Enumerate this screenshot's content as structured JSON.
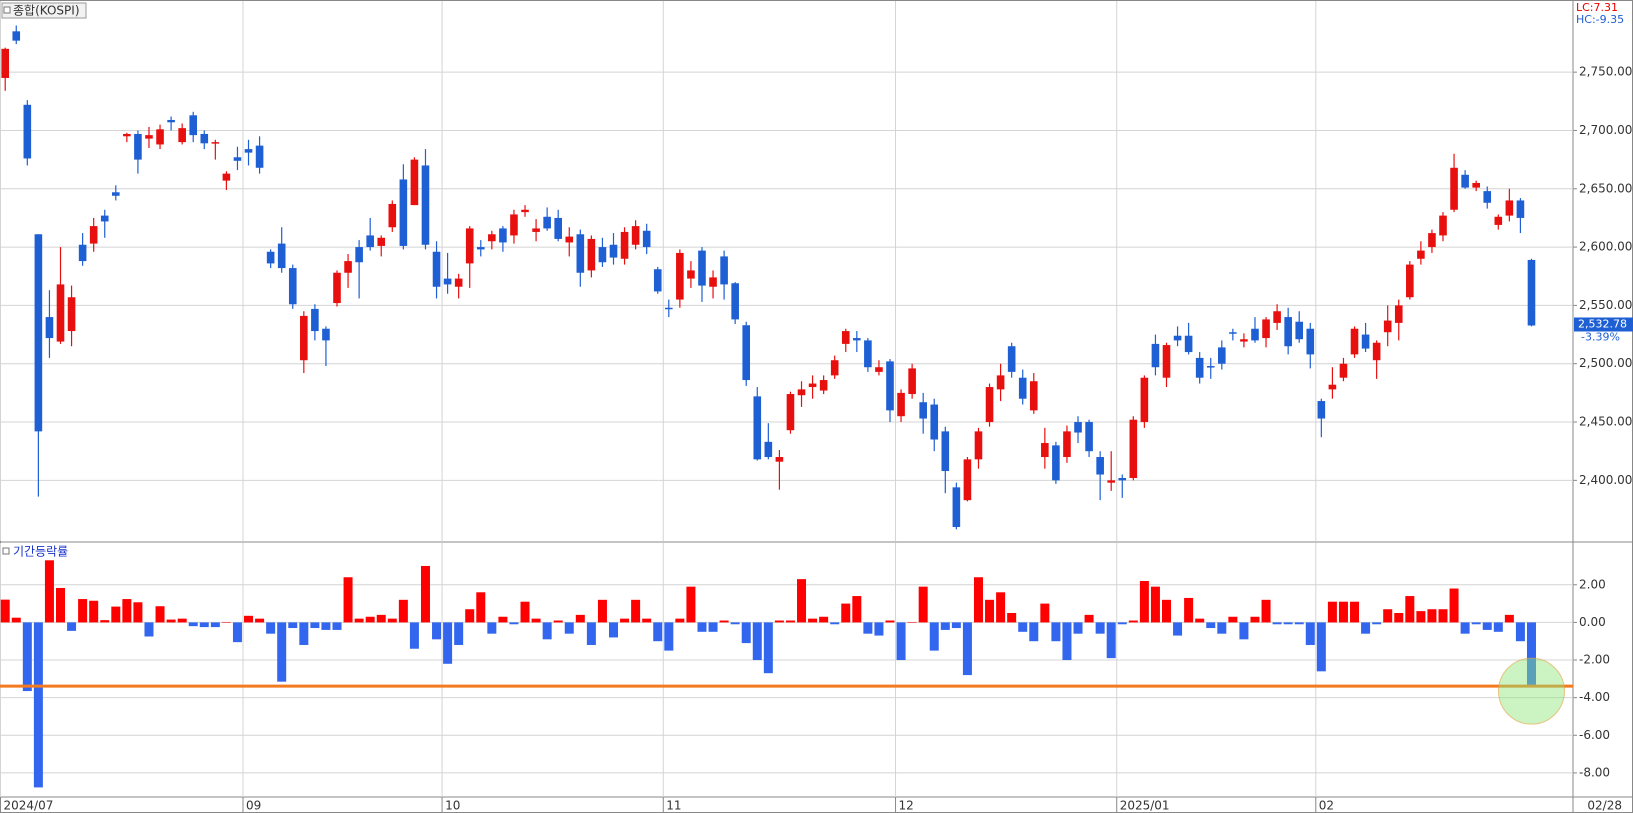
{
  "chart_data": [
    {
      "type": "candlestick",
      "title": "종합(KOSPI)",
      "categories": [
        "2024/07",
        null,
        null,
        null,
        null,
        null,
        null,
        null,
        null,
        null,
        null,
        null,
        null,
        null,
        null,
        null,
        null,
        null,
        null,
        null,
        null,
        null,
        "09",
        null,
        null,
        null,
        null,
        null,
        null,
        null,
        null,
        null,
        null,
        null,
        null,
        null,
        null,
        null,
        null,
        null,
        "10",
        null,
        null,
        null,
        null,
        null,
        null,
        null,
        null,
        null,
        null,
        null,
        null,
        null,
        null,
        null,
        null,
        null,
        null,
        null,
        "11",
        null,
        null,
        null,
        null,
        null,
        null,
        null,
        null,
        null,
        null,
        null,
        null,
        null,
        null,
        null,
        null,
        null,
        null,
        null,
        null,
        "12",
        null,
        null,
        null,
        null,
        null,
        null,
        null,
        null,
        null,
        null,
        null,
        null,
        null,
        null,
        null,
        null,
        null,
        null,
        null,
        "2025/01",
        null,
        null,
        null,
        null,
        null,
        null,
        null,
        null,
        null,
        null,
        null,
        null,
        null,
        null,
        null,
        null,
        null,
        "02",
        null,
        null,
        null,
        null,
        null,
        null,
        null,
        null,
        null,
        null,
        null,
        null,
        null,
        null,
        null,
        null,
        null,
        null,
        null
      ],
      "x_end_label": "02/28",
      "ohlc": [
        [
          2745,
          2771,
          2734,
          2770
        ],
        [
          2785,
          2790,
          2774,
          2777
        ],
        [
          2722,
          2726,
          2670,
          2676
        ],
        [
          2611,
          2611,
          2386,
          2442
        ],
        [
          2540,
          2563,
          2505,
          2522
        ],
        [
          2519,
          2600,
          2517,
          2568
        ],
        [
          2528,
          2567,
          2515,
          2557
        ],
        [
          2602,
          2612,
          2584,
          2588
        ],
        [
          2603,
          2625,
          2596,
          2618
        ],
        [
          2627,
          2632,
          2608,
          2622
        ],
        [
          2647,
          2653,
          2640,
          2644
        ],
        [
          2695,
          2698,
          2690,
          2697
        ],
        [
          2697,
          2700,
          2663,
          2675
        ],
        [
          2693,
          2703,
          2685,
          2696
        ],
        [
          2688,
          2705,
          2684,
          2701
        ],
        [
          2709,
          2712,
          2700,
          2707
        ],
        [
          2690,
          2706,
          2688,
          2702
        ],
        [
          2713,
          2716,
          2690,
          2696
        ],
        [
          2697,
          2700,
          2684,
          2689
        ],
        [
          2689,
          2692,
          2675,
          2690
        ],
        [
          2657,
          2665,
          2649,
          2663
        ],
        [
          2677,
          2686,
          2666,
          2674
        ],
        [
          2684,
          2692,
          2670,
          2681
        ],
        [
          2687,
          2695,
          2663,
          2668
        ],
        [
          2596,
          2598,
          2582,
          2586
        ],
        [
          2603,
          2617,
          2578,
          2582
        ],
        [
          2582,
          2585,
          2547,
          2551
        ],
        [
          2503,
          2545,
          2492,
          2541
        ],
        [
          2547,
          2551,
          2520,
          2528
        ],
        [
          2530,
          2532,
          2498,
          2520
        ],
        [
          2552,
          2580,
          2549,
          2578
        ],
        [
          2578,
          2594,
          2565,
          2588
        ],
        [
          2600,
          2606,
          2556,
          2587
        ],
        [
          2610,
          2625,
          2597,
          2600
        ],
        [
          2601,
          2610,
          2592,
          2608
        ],
        [
          2617,
          2640,
          2613,
          2637
        ],
        [
          2658,
          2671,
          2598,
          2601
        ],
        [
          2636,
          2677,
          2636,
          2675
        ],
        [
          2670,
          2684,
          2598,
          2602
        ],
        [
          2596,
          2605,
          2556,
          2566
        ],
        [
          2573,
          2595,
          2560,
          2568
        ],
        [
          2566,
          2577,
          2556,
          2573
        ],
        [
          2586,
          2618,
          2565,
          2616
        ],
        [
          2600,
          2606,
          2592,
          2598
        ],
        [
          2605,
          2614,
          2598,
          2611
        ],
        [
          2616,
          2618,
          2596,
          2604
        ],
        [
          2610,
          2632,
          2603,
          2628
        ],
        [
          2630,
          2636,
          2626,
          2632
        ],
        [
          2613,
          2624,
          2605,
          2616
        ],
        [
          2626,
          2634,
          2614,
          2616
        ],
        [
          2625,
          2632,
          2605,
          2607
        ],
        [
          2604,
          2617,
          2592,
          2609
        ],
        [
          2611,
          2615,
          2566,
          2578
        ],
        [
          2580,
          2610,
          2574,
          2607
        ],
        [
          2600,
          2608,
          2583,
          2587
        ],
        [
          2602,
          2612,
          2585,
          2591
        ],
        [
          2590,
          2617,
          2585,
          2613
        ],
        [
          2602,
          2623,
          2598,
          2618
        ],
        [
          2614,
          2620,
          2594,
          2600
        ],
        [
          2581,
          2583,
          2560,
          2562
        ],
        [
          2548,
          2555,
          2540,
          2547
        ],
        [
          2555,
          2598,
          2548,
          2595
        ],
        [
          2573,
          2588,
          2565,
          2580
        ],
        [
          2597,
          2600,
          2553,
          2567
        ],
        [
          2566,
          2580,
          2556,
          2574
        ],
        [
          2592,
          2597,
          2555,
          2568
        ],
        [
          2569,
          2570,
          2534,
          2538
        ],
        [
          2533,
          2536,
          2481,
          2486
        ],
        [
          2472,
          2480,
          2417,
          2418
        ],
        [
          2433,
          2449,
          2418,
          2420
        ],
        [
          2416,
          2426,
          2392,
          2420
        ],
        [
          2443,
          2476,
          2440,
          2474
        ],
        [
          2473,
          2485,
          2463,
          2478
        ],
        [
          2480,
          2490,
          2470,
          2483
        ],
        [
          2477,
          2490,
          2474,
          2486
        ],
        [
          2490,
          2507,
          2487,
          2503
        ],
        [
          2517,
          2530,
          2510,
          2528
        ],
        [
          2522,
          2528,
          2510,
          2520
        ],
        [
          2520,
          2522,
          2493,
          2497
        ],
        [
          2493,
          2503,
          2490,
          2497
        ],
        [
          2502,
          2504,
          2450,
          2460
        ],
        [
          2455,
          2478,
          2450,
          2475
        ],
        [
          2474,
          2500,
          2470,
          2496
        ],
        [
          2467,
          2475,
          2440,
          2453
        ],
        [
          2465,
          2470,
          2425,
          2435
        ],
        [
          2442,
          2446,
          2389,
          2408
        ],
        [
          2394,
          2398,
          2358,
          2360
        ],
        [
          2383,
          2420,
          2382,
          2418
        ],
        [
          2418,
          2445,
          2410,
          2442
        ],
        [
          2450,
          2483,
          2446,
          2480
        ],
        [
          2478,
          2500,
          2468,
          2490
        ],
        [
          2515,
          2518,
          2488,
          2493
        ],
        [
          2488,
          2495,
          2465,
          2470
        ],
        [
          2460,
          2492,
          2457,
          2485
        ],
        [
          2420,
          2445,
          2410,
          2432
        ],
        [
          2430,
          2433,
          2397,
          2400
        ],
        [
          2420,
          2447,
          2415,
          2442
        ],
        [
          2450,
          2455,
          2432,
          2441
        ],
        [
          2450,
          2452,
          2420,
          2425
        ],
        [
          2420,
          2425,
          2383,
          2405
        ],
        [
          2398,
          2425,
          2391,
          2400
        ],
        [
          2402,
          2405,
          2385,
          2400
        ],
        [
          2402,
          2455,
          2400,
          2452
        ],
        [
          2450,
          2490,
          2445,
          2488
        ],
        [
          2517,
          2525,
          2490,
          2497
        ],
        [
          2488,
          2518,
          2480,
          2516
        ],
        [
          2524,
          2532,
          2515,
          2520
        ],
        [
          2524,
          2535,
          2508,
          2510
        ],
        [
          2505,
          2510,
          2483,
          2488
        ],
        [
          2498,
          2505,
          2487,
          2497
        ],
        [
          2514,
          2520,
          2495,
          2500
        ],
        [
          2527,
          2530,
          2520,
          2526
        ],
        [
          2519,
          2526,
          2514,
          2521
        ],
        [
          2530,
          2540,
          2518,
          2520
        ],
        [
          2522,
          2540,
          2514,
          2538
        ],
        [
          2535,
          2551,
          2529,
          2545
        ],
        [
          2540,
          2548,
          2508,
          2515
        ],
        [
          2536,
          2545,
          2518,
          2521
        ],
        [
          2530,
          2535,
          2496,
          2508
        ],
        [
          2468,
          2470,
          2437,
          2453
        ],
        [
          2478,
          2497,
          2470,
          2482
        ],
        [
          2488,
          2505,
          2485,
          2500
        ],
        [
          2508,
          2532,
          2505,
          2530
        ],
        [
          2525,
          2535,
          2510,
          2513
        ],
        [
          2503,
          2520,
          2487,
          2518
        ],
        [
          2527,
          2550,
          2515,
          2537
        ],
        [
          2535,
          2555,
          2520,
          2550
        ],
        [
          2557,
          2588,
          2555,
          2585
        ],
        [
          2590,
          2605,
          2585,
          2597
        ],
        [
          2600,
          2615,
          2595,
          2612
        ],
        [
          2610,
          2630,
          2605,
          2627
        ],
        [
          2632,
          2680,
          2630,
          2668
        ],
        [
          2662,
          2666,
          2650,
          2651
        ],
        [
          2651,
          2657,
          2648,
          2655
        ],
        [
          2648,
          2652,
          2633,
          2638
        ],
        [
          2619,
          2628,
          2615,
          2626
        ],
        [
          2627,
          2650,
          2622,
          2640
        ],
        [
          2640,
          2642,
          2612,
          2625
        ],
        [
          2589,
          2590,
          2532,
          2532.78
        ]
      ],
      "up_color": "#e8100f",
      "down_color": "#1e5fd4",
      "ylim": [
        2348,
        2811
      ],
      "yticks": [
        {
          "value": 2400,
          "label": "2,400.00"
        },
        {
          "value": 2450,
          "label": "2,450.00"
        },
        {
          "value": 2500,
          "label": "2,500.00"
        },
        {
          "value": 2550,
          "label": "2,550.00"
        },
        {
          "value": 2600,
          "label": "2,600.00"
        },
        {
          "value": 2650,
          "label": "2,650.00"
        },
        {
          "value": 2700,
          "label": "2,700.00"
        },
        {
          "value": 2750,
          "label": "2,750.00"
        }
      ],
      "grid": true,
      "lc_label": "LC:7.31",
      "hc_label": "HC:-9.35",
      "last_price_label": "2,532.78",
      "last_change_label": "-3.39%"
    },
    {
      "type": "bar",
      "title": "기간등락률",
      "values": [
        1.21,
        0.25,
        -3.65,
        -8.77,
        3.3,
        1.83,
        -0.45,
        1.24,
        1.15,
        0.12,
        0.84,
        1.24,
        1.07,
        -0.75,
        0.86,
        0.15,
        0.2,
        -0.2,
        -0.25,
        -0.25,
        0.0,
        -1.05,
        0.35,
        0.2,
        -0.6,
        -3.15,
        -0.3,
        -1.2,
        -0.3,
        -0.4,
        -0.4,
        2.4,
        0.2,
        0.3,
        0.4,
        0.2,
        1.2,
        -1.4,
        3.0,
        -0.9,
        -2.2,
        -1.2,
        0.7,
        1.6,
        -0.6,
        0.3,
        -0.1,
        1.1,
        0.2,
        -0.9,
        0.1,
        -0.6,
        0.4,
        -1.2,
        1.2,
        -0.8,
        0.2,
        1.2,
        0.2,
        -1.0,
        -1.5,
        0.2,
        1.9,
        -0.5,
        -0.5,
        0.1,
        -0.1,
        -1.1,
        -2.0,
        -2.7,
        0.1,
        0.1,
        2.3,
        0.2,
        0.3,
        -0.1,
        1.0,
        1.4,
        -0.6,
        -0.7,
        0.1,
        -2.0,
        0.0,
        1.9,
        -1.5,
        -0.4,
        -0.3,
        -2.8,
        2.4,
        1.2,
        1.6,
        0.5,
        -0.5,
        -1.0,
        1.0,
        -1.0,
        -2.0,
        -0.6,
        0.4,
        -0.6,
        -1.9,
        -0.1,
        0.1,
        2.2,
        1.9,
        1.2,
        -0.7,
        1.3,
        0.2,
        -0.3,
        -0.6,
        0.3,
        -0.9,
        0.3,
        1.2,
        -0.1,
        -0.1,
        -0.1,
        -1.2,
        -2.6,
        1.1,
        1.1,
        1.1,
        -0.6,
        -0.1,
        0.7,
        0.5,
        1.4,
        0.6,
        0.7,
        0.7,
        1.8,
        -0.6,
        -0.1,
        -0.4,
        -0.5,
        0.4,
        -1.0,
        -3.39
      ],
      "up_color": "#ff0000",
      "down_color": "#3366ee",
      "ylim": [
        -9.28,
        4.22
      ],
      "yticks": [
        {
          "value": 2,
          "label": "2.00"
        },
        {
          "value": 0,
          "label": "0.00"
        },
        {
          "value": -2,
          "label": "-2.00"
        },
        {
          "value": -4,
          "label": "-4.00"
        },
        {
          "value": -6,
          "label": "-6.00"
        },
        {
          "value": -8,
          "label": "-8.00"
        }
      ],
      "grid": true,
      "reference_line": {
        "value": -3.39,
        "color": "#f47a20"
      }
    }
  ]
}
